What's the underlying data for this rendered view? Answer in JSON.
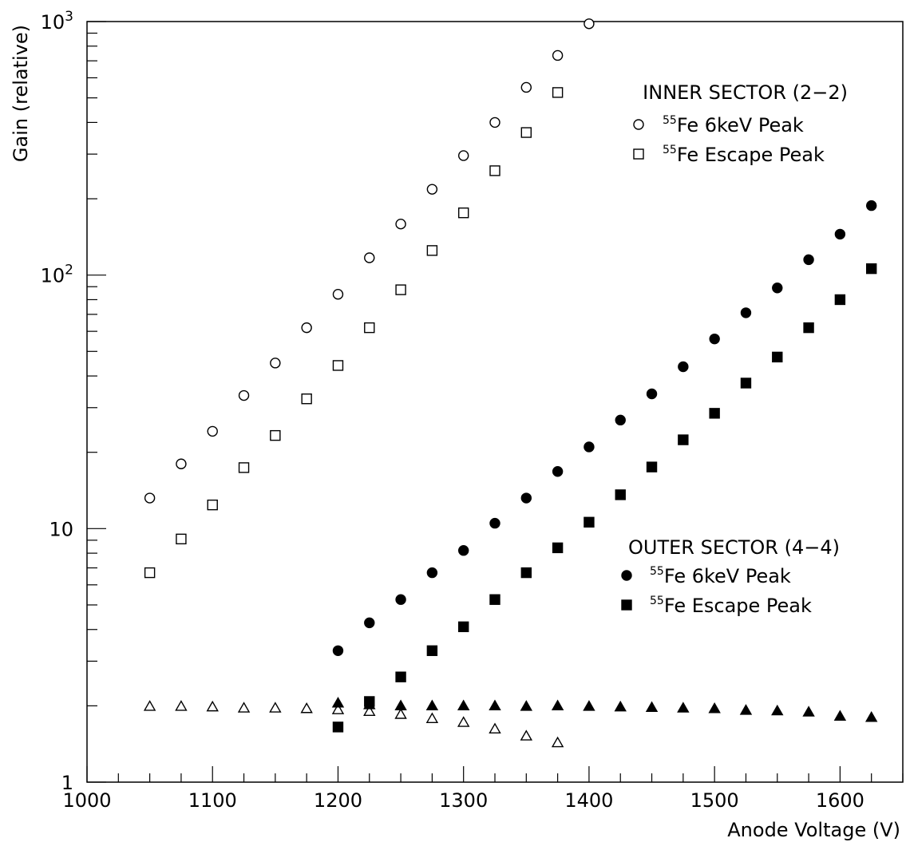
{
  "chart_data": {
    "type": "scatter",
    "title": "",
    "xlabel": "Anode Voltage (V)",
    "ylabel": "Gain (relative)",
    "xlim": [
      1000,
      1650
    ],
    "ylim": [
      1,
      1000
    ],
    "yscale": "log",
    "grid": false,
    "x_ticks": [
      1000,
      1100,
      1200,
      1300,
      1400,
      1500,
      1600
    ],
    "x_tick_labels": [
      "1000",
      "1100",
      "1200",
      "1300",
      "1400",
      "1500",
      "1600"
    ],
    "y_tick_labels": [
      {
        "value": 1,
        "base": "1",
        "exp": ""
      },
      {
        "value": 10,
        "base": "10",
        "exp": ""
      },
      {
        "value": 100,
        "base": "10",
        "exp": "2"
      },
      {
        "value": 1000,
        "base": "10",
        "exp": "3"
      }
    ],
    "legend_groups": [
      {
        "heading": "INNER SECTOR (2−2)",
        "placement": "top-right",
        "entries": [
          {
            "sup": "55",
            "text": "Fe 6keV Peak",
            "series": "inner_6kev"
          },
          {
            "sup": "55",
            "text": "Fe Escape Peak",
            "series": "inner_escape"
          }
        ]
      },
      {
        "heading": "OUTER SECTOR (4−4)",
        "placement": "middle-right",
        "entries": [
          {
            "sup": "55",
            "text": "Fe 6keV Peak",
            "series": "outer_6kev"
          },
          {
            "sup": "55",
            "text": "Fe Escape Peak",
            "series": "outer_escape"
          }
        ]
      }
    ],
    "series": [
      {
        "key": "inner_6kev",
        "marker": "circle-open",
        "x": [
          1050,
          1075,
          1100,
          1125,
          1150,
          1175,
          1200,
          1225,
          1250,
          1275,
          1300,
          1325,
          1350,
          1375,
          1400
        ],
        "y": [
          13.2,
          18,
          24.2,
          33.5,
          45,
          62,
          84,
          117,
          159,
          218,
          296,
          400,
          550,
          735,
          980
        ]
      },
      {
        "key": "inner_escape",
        "marker": "square-open",
        "x": [
          1050,
          1075,
          1100,
          1125,
          1150,
          1175,
          1200,
          1225,
          1250,
          1275,
          1300,
          1325,
          1350,
          1375
        ],
        "y": [
          6.7,
          9.1,
          12.4,
          17.4,
          23.3,
          32.5,
          44,
          62,
          87.5,
          125,
          176,
          258,
          365,
          525
        ]
      },
      {
        "key": "outer_6kev",
        "marker": "circle-filled",
        "x": [
          1200,
          1225,
          1250,
          1275,
          1300,
          1325,
          1350,
          1375,
          1400,
          1425,
          1450,
          1475,
          1500,
          1525,
          1550,
          1575,
          1600,
          1625
        ],
        "y": [
          3.3,
          4.25,
          5.25,
          6.7,
          8.2,
          10.5,
          13.2,
          16.8,
          21,
          26.8,
          34,
          43.5,
          56,
          71,
          89,
          115,
          145,
          188
        ]
      },
      {
        "key": "outer_escape",
        "marker": "square-filled",
        "x": [
          1200,
          1225,
          1250,
          1275,
          1300,
          1325,
          1350,
          1375,
          1400,
          1425,
          1450,
          1475,
          1500,
          1525,
          1550,
          1575,
          1600,
          1625
        ],
        "y": [
          1.65,
          2.08,
          2.6,
          3.3,
          4.1,
          5.25,
          6.7,
          8.4,
          10.6,
          13.6,
          17.5,
          22.4,
          28.5,
          37.5,
          47.5,
          62,
          80,
          106
        ]
      },
      {
        "key": "inner_ratio",
        "marker": "triangle-open",
        "x": [
          1050,
          1075,
          1100,
          1125,
          1150,
          1175,
          1200,
          1225,
          1250,
          1275,
          1300,
          1325,
          1350,
          1375
        ],
        "y": [
          1.99,
          1.99,
          1.98,
          1.96,
          1.96,
          1.95,
          1.93,
          1.9,
          1.85,
          1.78,
          1.72,
          1.62,
          1.52,
          1.43
        ]
      },
      {
        "key": "outer_ratio",
        "marker": "triangle-filled",
        "x": [
          1200,
          1225,
          1250,
          1275,
          1300,
          1325,
          1350,
          1375,
          1400,
          1425,
          1450,
          1475,
          1500,
          1525,
          1550,
          1575,
          1600,
          1625
        ],
        "y": [
          2.05,
          2.02,
          2.0,
          2.0,
          2.0,
          2.0,
          1.99,
          2.0,
          1.99,
          1.98,
          1.97,
          1.96,
          1.95,
          1.92,
          1.91,
          1.89,
          1.82,
          1.8
        ]
      }
    ]
  }
}
